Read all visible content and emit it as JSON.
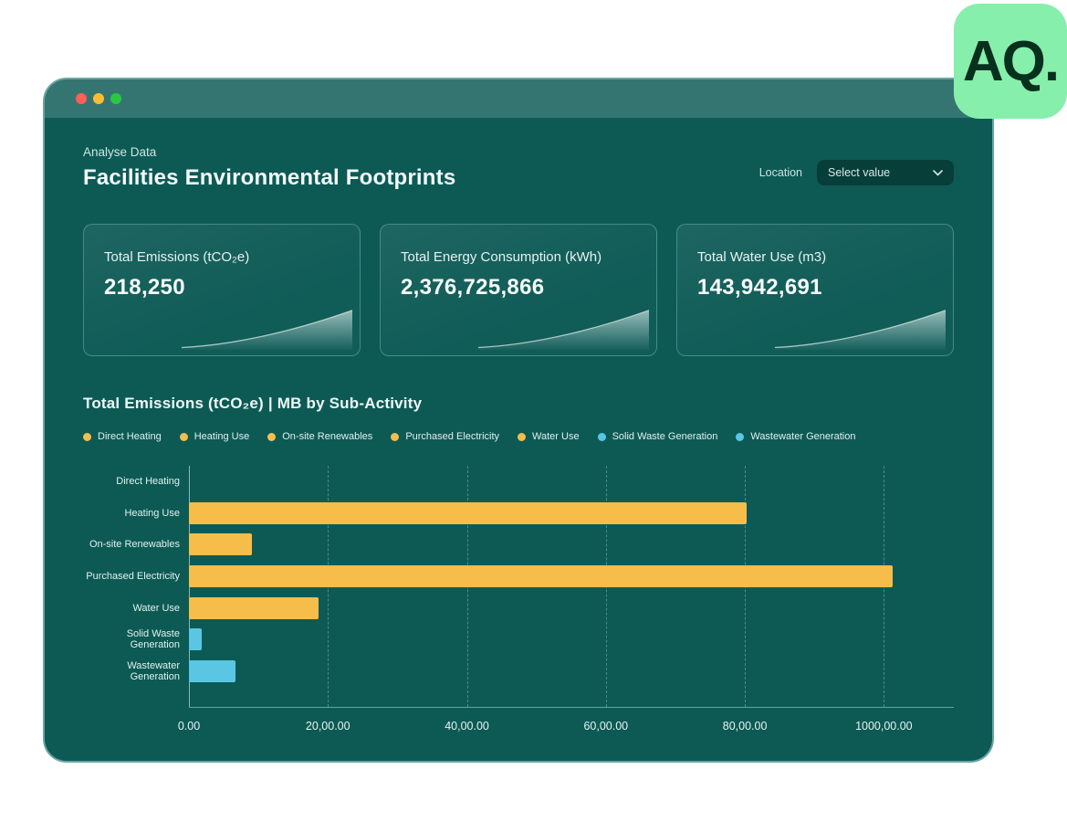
{
  "logo": {
    "text": "AQ."
  },
  "header": {
    "breadcrumb": "Analyse Data",
    "title": "Facilities Environmental Footprints",
    "location_label": "Location",
    "location_placeholder": "Select value"
  },
  "cards": [
    {
      "title": "Total Emissions (tCO₂e)",
      "value": "218,250"
    },
    {
      "title": "Total Energy Consumption (kWh)",
      "value": "2,376,725,866"
    },
    {
      "title": "Total Water Use (m3)",
      "value": "143,942,691"
    }
  ],
  "colors": {
    "window_bg": "#0d5a55",
    "badge_green": "#86efac",
    "bar_yellow": "#f7bd4b",
    "bar_blue": "#5ac6e4"
  },
  "chart_data": {
    "type": "bar",
    "orientation": "horizontal",
    "title": "Total Emissions (tCO₂e) | MB by Sub-Activity",
    "categories": [
      "Direct Heating",
      "Heating Use",
      "On-site Renewables",
      "Purchased Electricity",
      "Water Use",
      "Solid Waste Generation",
      "Wastewater Generation"
    ],
    "values": [
      0,
      80200,
      9000,
      101300,
      18600,
      1900,
      6700
    ],
    "bar_colors": [
      "#f7bd4b",
      "#f7bd4b",
      "#f7bd4b",
      "#f7bd4b",
      "#f7bd4b",
      "#5ac6e4",
      "#5ac6e4"
    ],
    "x_tick_labels": [
      "0.00",
      "20,00.00",
      "40,00.00",
      "60,00.00",
      "80,00.00",
      "1000,00.00"
    ],
    "x_tick_values": [
      0,
      20000,
      40000,
      60000,
      80000,
      100000
    ],
    "xlim": [
      0,
      110000
    ],
    "grid": "dashed-vertical",
    "legend_position": "top",
    "legend": [
      {
        "label": "Direct Heating",
        "color": "#f7bd4b"
      },
      {
        "label": "Heating Use",
        "color": "#f7bd4b"
      },
      {
        "label": "On-site Renewables",
        "color": "#f7bd4b"
      },
      {
        "label": "Purchased Electricity",
        "color": "#f7bd4b"
      },
      {
        "label": "Water Use",
        "color": "#f7bd4b"
      },
      {
        "label": "Solid Waste Generation",
        "color": "#5ac6e4"
      },
      {
        "label": "Wastewater Generation",
        "color": "#5ac6e4"
      }
    ]
  }
}
